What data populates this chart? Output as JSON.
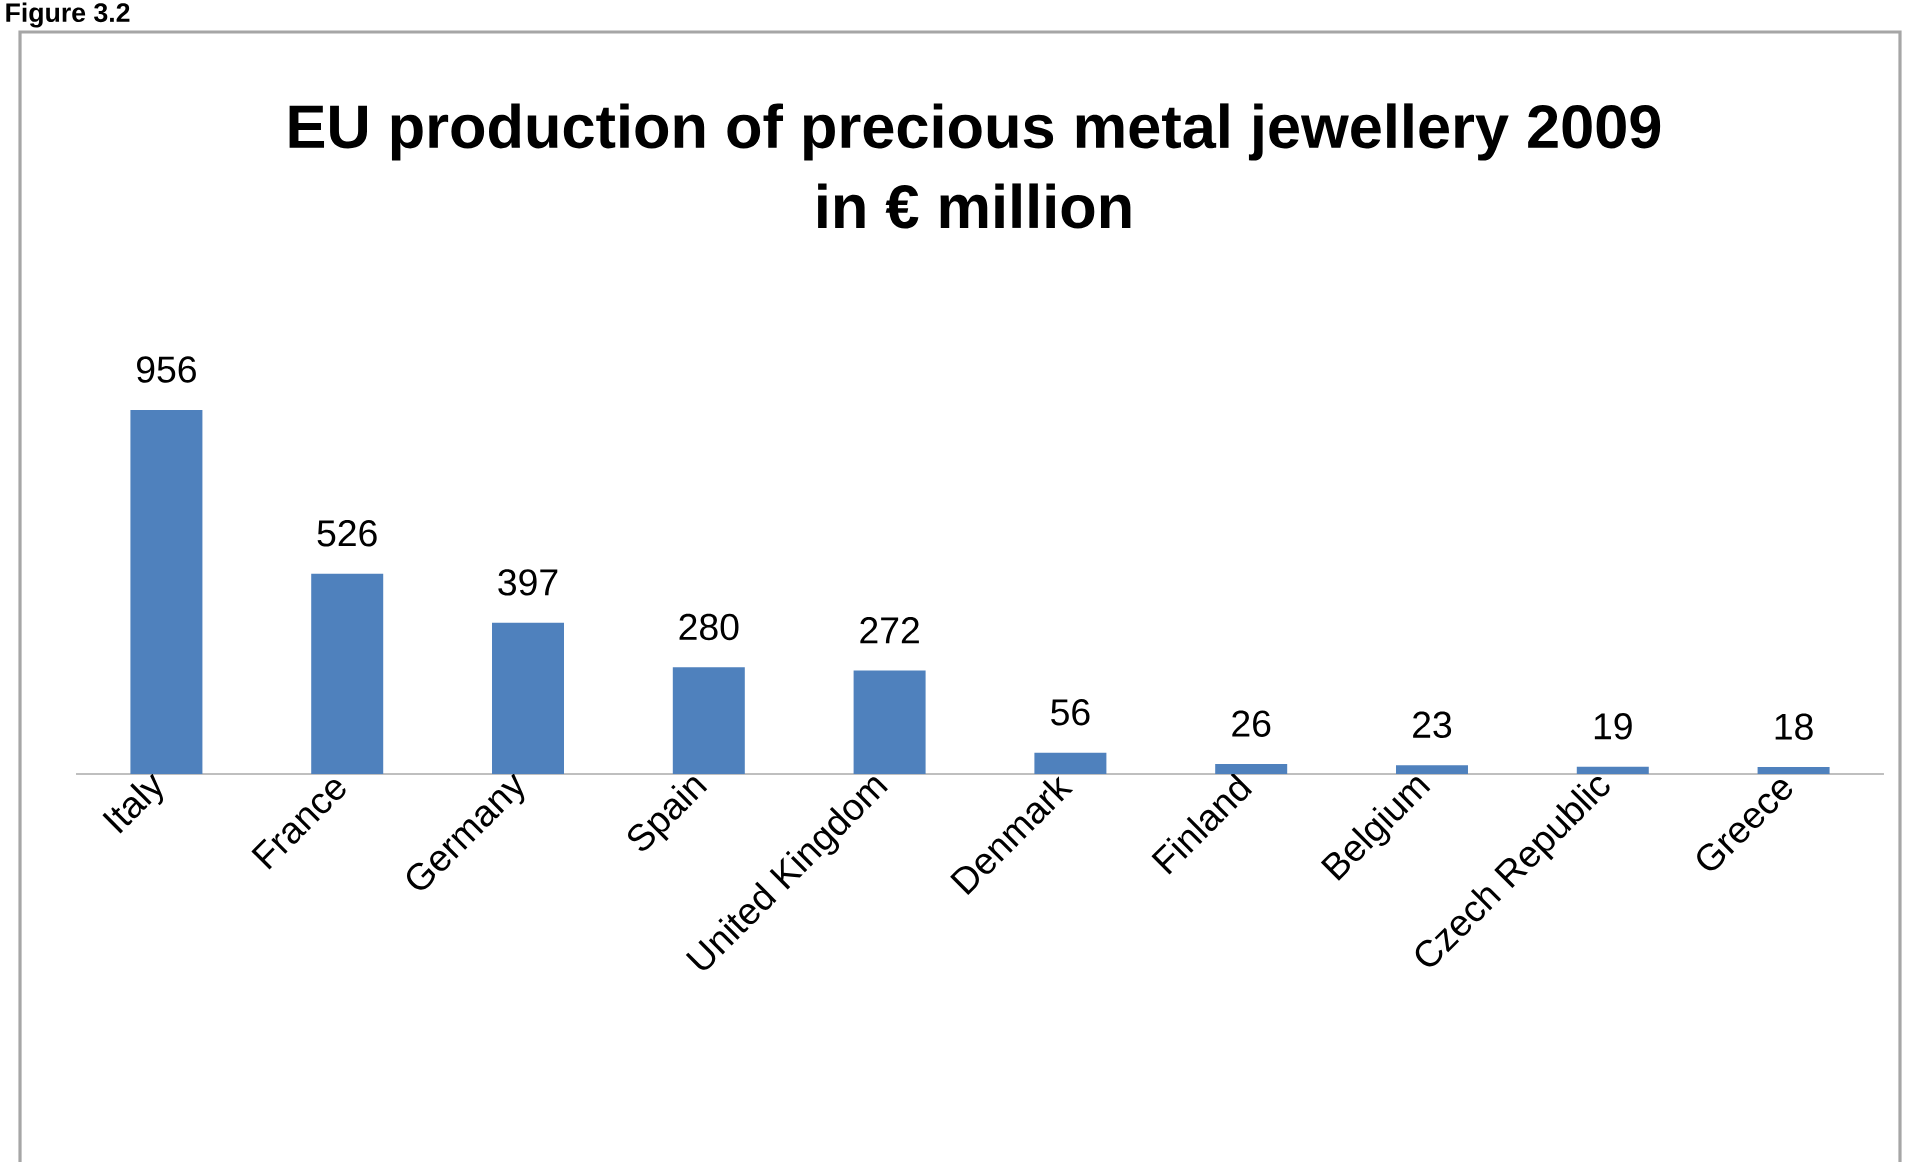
{
  "chart_data": {
    "type": "bar",
    "title": "EU production of precious metal jewellery 2009",
    "subtitle": "in € million",
    "annotations": [
      "Figure 3.2"
    ],
    "categories": [
      "Italy",
      "France",
      "Germany",
      "Spain",
      "United Kingdom",
      "Denmark",
      "Finland",
      "Belgium",
      "Czech Republic",
      "Greece"
    ],
    "values": [
      956,
      526,
      397,
      280,
      272,
      56,
      26,
      23,
      19,
      18
    ],
    "color": "#4f81bd",
    "data_labels": true
  }
}
